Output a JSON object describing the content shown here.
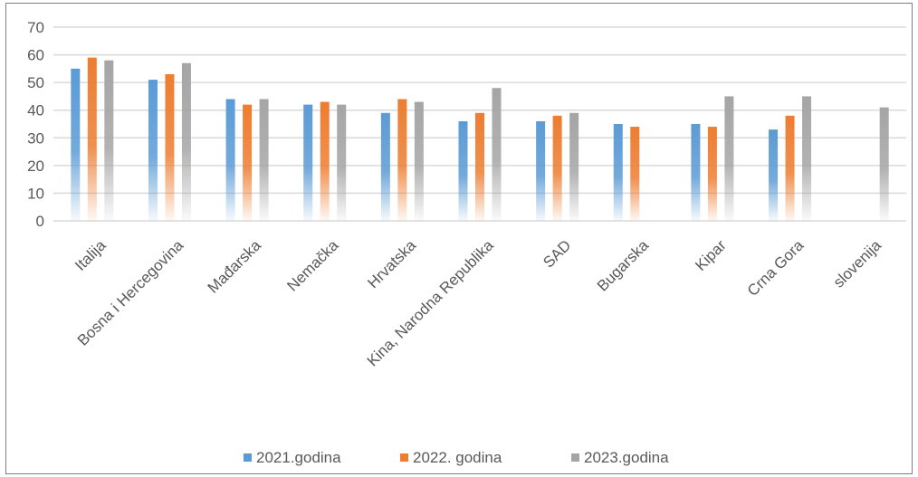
{
  "chart_data": {
    "type": "bar",
    "title": "",
    "xlabel": "",
    "ylabel": "",
    "ylim": [
      0,
      70
    ],
    "yticks": [
      0,
      10,
      20,
      30,
      40,
      50,
      60,
      70
    ],
    "grid": true,
    "legend_position": "bottom",
    "categories": [
      "Italija",
      "Bosna i Hercegovina",
      "Mađarska",
      "Nemačka",
      "Hrvatska",
      "Kina, Narodna Republika",
      "SAD",
      "Bugarska",
      "Kipar",
      "Crna Gora",
      "slovenija"
    ],
    "series": [
      {
        "name": "2021.godina",
        "color": "#5b9bd5",
        "values": [
          55,
          51,
          44,
          42,
          39,
          36,
          36,
          35,
          35,
          33,
          null
        ]
      },
      {
        "name": "2022. godina",
        "color": "#ed7d31",
        "values": [
          59,
          53,
          42,
          43,
          44,
          39,
          38,
          34,
          34,
          38,
          null
        ]
      },
      {
        "name": "2023.godina",
        "color": "#a5a5a5",
        "values": [
          58,
          57,
          44,
          42,
          43,
          48,
          39,
          null,
          45,
          45,
          41
        ]
      }
    ]
  }
}
